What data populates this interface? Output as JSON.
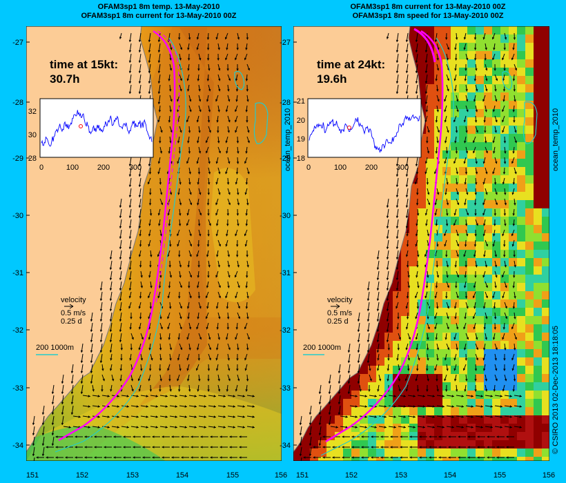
{
  "left_panel": {
    "title_line1": "OFAM3sp1 8m temp. 13-May-2010",
    "title_line2": "OFAM3sp1 8m current for 13-May-2010 00Z",
    "time_label": "time at 15kt:",
    "time_value": "30.7h",
    "inset_yticks": [
      "32",
      "30",
      "28"
    ],
    "inset_xticks": [
      "0",
      "100",
      "200",
      "300"
    ],
    "side_label": "ocean_temp_2010",
    "velocity_label": "velocity",
    "velocity_speed": "0.5 m/s",
    "velocity_time": "0.25 d",
    "depth_legend": "200  1000m"
  },
  "right_panel": {
    "title_line1": "OFAM3sp1 8m current for 13-May-2010 00Z",
    "title_line2": "OFAM3sp1 8m speed for 13-May-2010 00Z",
    "time_label": "time at 24kt:",
    "time_value": "19.6h",
    "inset_yticks": [
      "21",
      "20",
      "19",
      "18"
    ],
    "inset_xticks": [
      "0",
      "100",
      "200",
      "300"
    ],
    "side_label": "ocean_temp_2010",
    "velocity_label": "velocity",
    "velocity_speed": "0.5 m/s",
    "velocity_time": "0.25 d",
    "depth_legend": "200  1000m"
  },
  "lat_ticks": [
    "-27",
    "-28",
    "-29",
    "-30",
    "-31",
    "-32",
    "-33",
    "-34"
  ],
  "lon_ticks": [
    "151",
    "152",
    "153",
    "154",
    "155",
    "156"
  ],
  "copyright": "© CSIRO 2013   02-Dec-2013 18:18:05",
  "colors": {
    "background": "#00c8ff",
    "land": "#fccc96",
    "track": "#ff00ff",
    "contour": "#22cccc"
  }
}
